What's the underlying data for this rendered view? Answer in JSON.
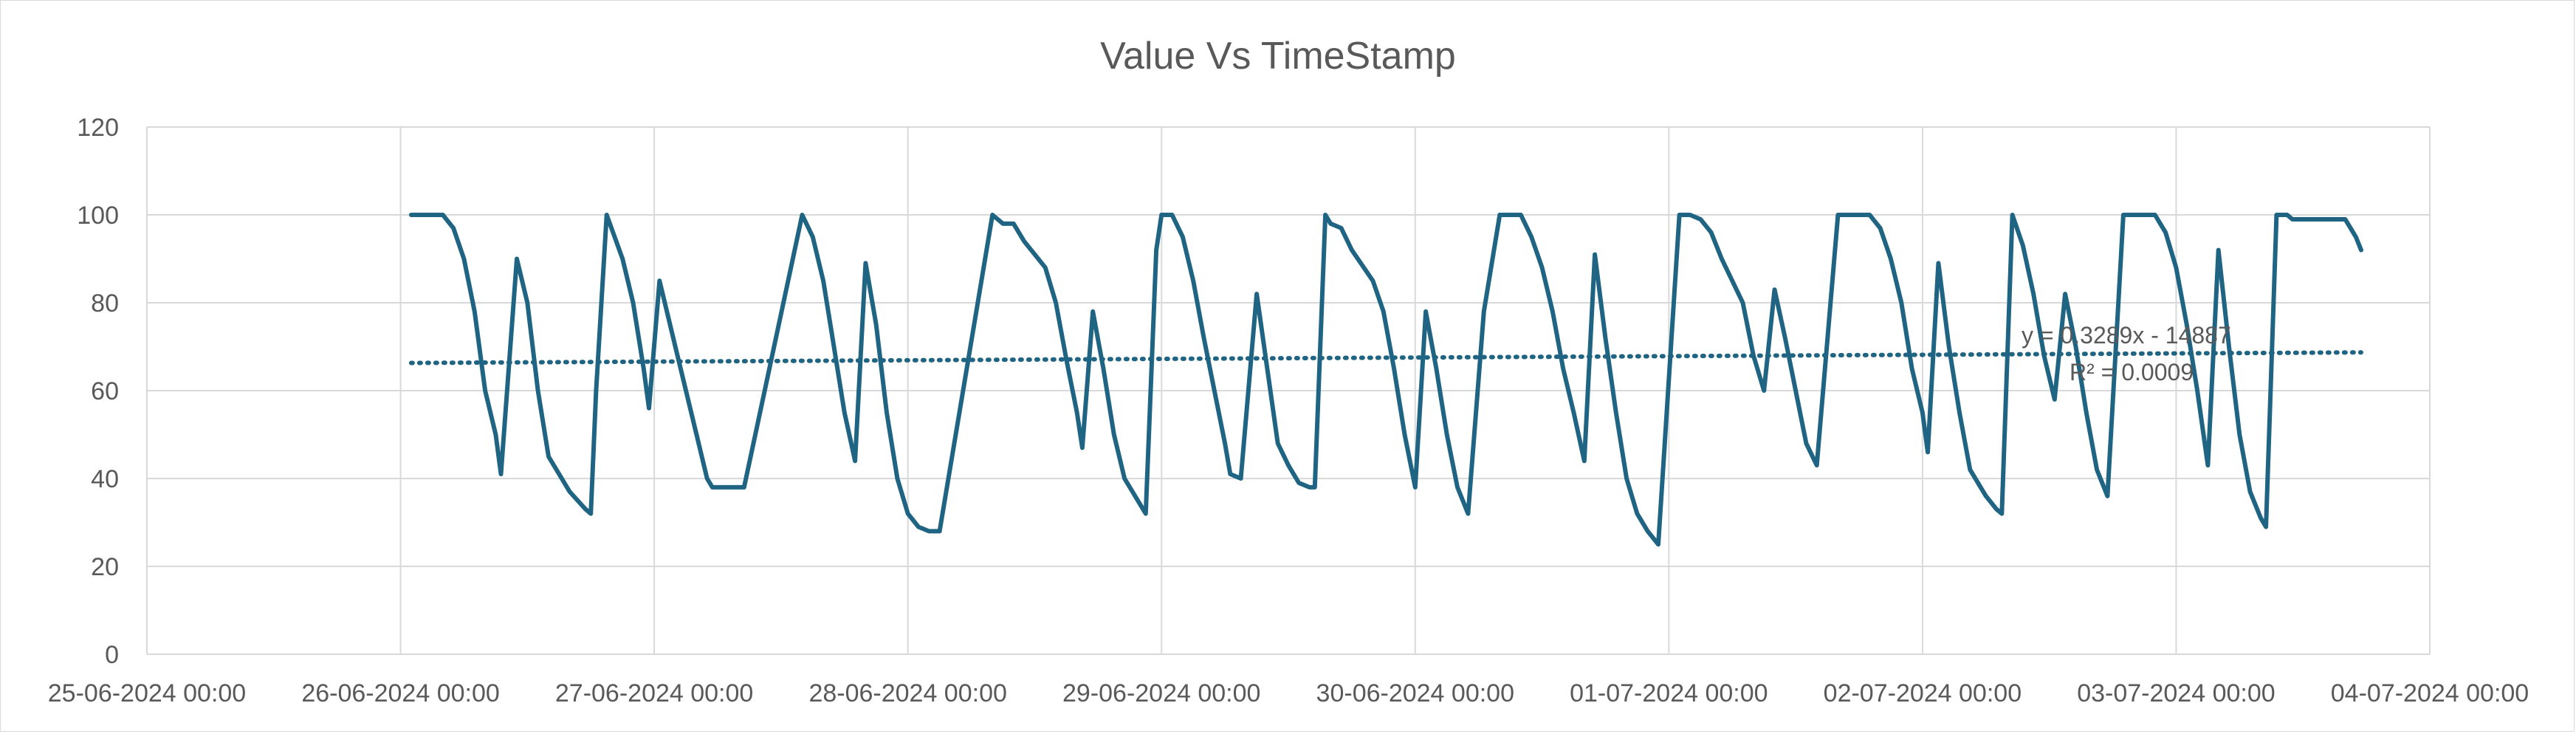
{
  "chart_data": {
    "type": "line",
    "title": "Value Vs TimeStamp",
    "xlabel": "",
    "ylabel": "",
    "ylim": [
      0,
      120
    ],
    "y_ticks": [
      0,
      20,
      40,
      60,
      80,
      100,
      120
    ],
    "xlim": [
      "2024-06-25 00:00",
      "2024-07-04 00:00"
    ],
    "x_tick_labels": [
      "25-06-2024 00:00",
      "26-06-2024 00:00",
      "27-06-2024 00:00",
      "28-06-2024 00:00",
      "29-06-2024 00:00",
      "30-06-2024 00:00",
      "01-07-2024 00:00",
      "02-07-2024 00:00",
      "03-07-2024 00:00",
      "04-07-2024 00:00"
    ],
    "grid": true,
    "line_color": "#1f6482",
    "series": [
      {
        "points": [
          [
            "2024-06-26 01:00",
            100
          ],
          [
            "2024-06-26 04:00",
            100
          ],
          [
            "2024-06-26 05:00",
            97
          ],
          [
            "2024-06-26 06:00",
            90
          ],
          [
            "2024-06-26 07:00",
            78
          ],
          [
            "2024-06-26 08:00",
            60
          ],
          [
            "2024-06-26 09:00",
            50
          ],
          [
            "2024-06-26 09:30",
            41
          ],
          [
            "2024-06-26 11:00",
            90
          ],
          [
            "2024-06-26 12:00",
            80
          ],
          [
            "2024-06-26 13:00",
            60
          ],
          [
            "2024-06-26 14:00",
            45
          ],
          [
            "2024-06-26 16:00",
            37
          ],
          [
            "2024-06-26 17:30",
            33
          ],
          [
            "2024-06-26 18:00",
            32
          ],
          [
            "2024-06-26 18:30",
            60
          ],
          [
            "2024-06-26 19:30",
            100
          ],
          [
            "2024-06-26 21:00",
            90
          ],
          [
            "2024-06-26 22:00",
            80
          ],
          [
            "2024-06-26 23:00",
            65
          ],
          [
            "2024-06-26 23:30",
            56
          ],
          [
            "2024-06-27 00:30",
            85
          ],
          [
            "2024-06-27 02:00",
            70
          ],
          [
            "2024-06-27 04:00",
            50
          ],
          [
            "2024-06-27 05:00",
            40
          ],
          [
            "2024-06-27 05:30",
            38
          ],
          [
            "2024-06-27 08:30",
            38
          ],
          [
            "2024-06-27 14:00",
            100
          ],
          [
            "2024-06-27 15:00",
            95
          ],
          [
            "2024-06-27 16:00",
            85
          ],
          [
            "2024-06-27 17:00",
            70
          ],
          [
            "2024-06-27 18:00",
            55
          ],
          [
            "2024-06-27 19:00",
            44
          ],
          [
            "2024-06-27 20:00",
            89
          ],
          [
            "2024-06-27 21:00",
            75
          ],
          [
            "2024-06-27 22:00",
            55
          ],
          [
            "2024-06-27 23:00",
            40
          ],
          [
            "2024-06-28 00:00",
            32
          ],
          [
            "2024-06-28 01:00",
            29
          ],
          [
            "2024-06-28 02:00",
            28
          ],
          [
            "2024-06-28 03:00",
            28
          ],
          [
            "2024-06-28 08:00",
            100
          ],
          [
            "2024-06-28 09:00",
            98
          ],
          [
            "2024-06-28 10:00",
            98
          ],
          [
            "2024-06-28 11:00",
            94
          ],
          [
            "2024-06-28 13:00",
            88
          ],
          [
            "2024-06-28 14:00",
            80
          ],
          [
            "2024-06-28 15:00",
            67
          ],
          [
            "2024-06-28 16:00",
            55
          ],
          [
            "2024-06-28 16:30",
            47
          ],
          [
            "2024-06-28 17:30",
            78
          ],
          [
            "2024-06-28 18:30",
            65
          ],
          [
            "2024-06-28 19:30",
            50
          ],
          [
            "2024-06-28 20:30",
            40
          ],
          [
            "2024-06-28 22:00",
            34
          ],
          [
            "2024-06-28 22:30",
            32
          ],
          [
            "2024-06-28 23:30",
            92
          ],
          [
            "2024-06-29 00:00",
            100
          ],
          [
            "2024-06-29 01:00",
            100
          ],
          [
            "2024-06-29 02:00",
            95
          ],
          [
            "2024-06-29 03:00",
            85
          ],
          [
            "2024-06-29 04:00",
            72
          ],
          [
            "2024-06-29 05:00",
            60
          ],
          [
            "2024-06-29 06:00",
            48
          ],
          [
            "2024-06-29 06:30",
            41
          ],
          [
            "2024-06-29 07:30",
            40
          ],
          [
            "2024-06-29 09:00",
            82
          ],
          [
            "2024-06-29 10:00",
            65
          ],
          [
            "2024-06-29 11:00",
            48
          ],
          [
            "2024-06-29 12:00",
            43
          ],
          [
            "2024-06-29 13:00",
            39
          ],
          [
            "2024-06-29 14:00",
            38
          ],
          [
            "2024-06-29 14:30",
            38
          ],
          [
            "2024-06-29 15:30",
            100
          ],
          [
            "2024-06-29 16:00",
            98
          ],
          [
            "2024-06-29 17:00",
            97
          ],
          [
            "2024-06-29 18:00",
            92
          ],
          [
            "2024-06-29 20:00",
            85
          ],
          [
            "2024-06-29 21:00",
            78
          ],
          [
            "2024-06-29 22:00",
            65
          ],
          [
            "2024-06-29 23:00",
            50
          ],
          [
            "2024-06-30 00:00",
            38
          ],
          [
            "2024-06-30 01:00",
            78
          ],
          [
            "2024-06-30 02:00",
            65
          ],
          [
            "2024-06-30 03:00",
            50
          ],
          [
            "2024-06-30 04:00",
            38
          ],
          [
            "2024-06-30 05:00",
            32
          ],
          [
            "2024-06-30 06:30",
            78
          ],
          [
            "2024-06-30 08:00",
            100
          ],
          [
            "2024-06-30 10:00",
            100
          ],
          [
            "2024-06-30 11:00",
            95
          ],
          [
            "2024-06-30 12:00",
            88
          ],
          [
            "2024-06-30 13:00",
            78
          ],
          [
            "2024-06-30 14:00",
            65
          ],
          [
            "2024-06-30 15:00",
            55
          ],
          [
            "2024-06-30 16:00",
            44
          ],
          [
            "2024-06-30 17:00",
            91
          ],
          [
            "2024-06-30 18:00",
            72
          ],
          [
            "2024-06-30 19:00",
            55
          ],
          [
            "2024-06-30 20:00",
            40
          ],
          [
            "2024-06-30 21:00",
            32
          ],
          [
            "2024-06-30 22:00",
            28
          ],
          [
            "2024-06-30 23:00",
            25
          ],
          [
            "2024-07-01 01:00",
            100
          ],
          [
            "2024-07-01 02:00",
            100
          ],
          [
            "2024-07-01 03:00",
            99
          ],
          [
            "2024-07-01 04:00",
            96
          ],
          [
            "2024-07-01 05:00",
            90
          ],
          [
            "2024-07-01 07:00",
            80
          ],
          [
            "2024-07-01 08:00",
            68
          ],
          [
            "2024-07-01 09:00",
            60
          ],
          [
            "2024-07-01 10:00",
            83
          ],
          [
            "2024-07-01 11:00",
            72
          ],
          [
            "2024-07-01 12:00",
            60
          ],
          [
            "2024-07-01 13:00",
            48
          ],
          [
            "2024-07-01 14:00",
            43
          ],
          [
            "2024-07-01 16:00",
            100
          ],
          [
            "2024-07-01 19:00",
            100
          ],
          [
            "2024-07-01 20:00",
            97
          ],
          [
            "2024-07-01 21:00",
            90
          ],
          [
            "2024-07-01 22:00",
            80
          ],
          [
            "2024-07-01 23:00",
            65
          ],
          [
            "2024-07-02 00:00",
            55
          ],
          [
            "2024-07-02 00:30",
            46
          ],
          [
            "2024-07-02 01:30",
            89
          ],
          [
            "2024-07-02 02:30",
            70
          ],
          [
            "2024-07-02 03:30",
            55
          ],
          [
            "2024-07-02 04:30",
            42
          ],
          [
            "2024-07-02 06:00",
            36
          ],
          [
            "2024-07-02 07:00",
            33
          ],
          [
            "2024-07-02 07:30",
            32
          ],
          [
            "2024-07-02 08:30",
            100
          ],
          [
            "2024-07-02 09:30",
            93
          ],
          [
            "2024-07-02 10:30",
            82
          ],
          [
            "2024-07-02 11:30",
            68
          ],
          [
            "2024-07-02 12:30",
            58
          ],
          [
            "2024-07-02 13:30",
            82
          ],
          [
            "2024-07-02 14:30",
            70
          ],
          [
            "2024-07-02 15:30",
            55
          ],
          [
            "2024-07-02 16:30",
            42
          ],
          [
            "2024-07-02 17:30",
            36
          ],
          [
            "2024-07-02 19:00",
            100
          ],
          [
            "2024-07-02 22:00",
            100
          ],
          [
            "2024-07-02 23:00",
            96
          ],
          [
            "2024-07-03 00:00",
            88
          ],
          [
            "2024-07-03 01:00",
            75
          ],
          [
            "2024-07-03 02:00",
            60
          ],
          [
            "2024-07-03 03:00",
            43
          ],
          [
            "2024-07-03 04:00",
            92
          ],
          [
            "2024-07-03 05:00",
            70
          ],
          [
            "2024-07-03 06:00",
            50
          ],
          [
            "2024-07-03 07:00",
            37
          ],
          [
            "2024-07-03 08:00",
            31
          ],
          [
            "2024-07-03 08:30",
            29
          ],
          [
            "2024-07-03 09:30",
            100
          ],
          [
            "2024-07-03 10:30",
            100
          ],
          [
            "2024-07-03 11:00",
            99
          ],
          [
            "2024-07-03 16:00",
            99
          ],
          [
            "2024-07-03 17:00",
            95
          ],
          [
            "2024-07-03 17:30",
            92
          ]
        ]
      }
    ],
    "trendline": {
      "equation": "y = 0.3289x - 14887",
      "r_squared": "R² = 0.0009",
      "start": [
        "2024-06-26 01:00",
        66.3
      ],
      "end": [
        "2024-07-03 17:30",
        68.7
      ]
    }
  }
}
